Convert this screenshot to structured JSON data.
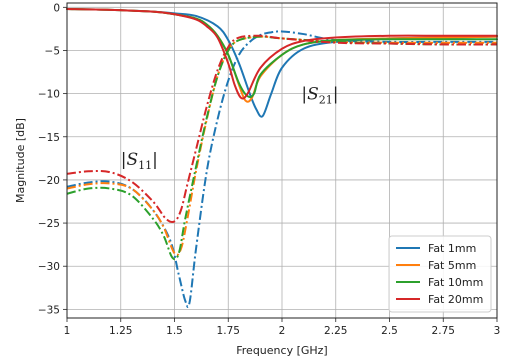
{
  "chart_data": {
    "type": "line",
    "title": "",
    "xlabel": "Frequency [GHz]",
    "ylabel": "Magnitude [dB]",
    "xlim": [
      1,
      3
    ],
    "ylim": [
      -36,
      0.5
    ],
    "xticks": [
      1,
      1.25,
      1.5,
      1.75,
      2,
      2.25,
      2.5,
      2.75,
      3
    ],
    "xtick_labels": [
      "1",
      "1.25",
      "1.5",
      "1.75",
      "2",
      "2.25",
      "2.5",
      "2.75",
      "3"
    ],
    "yticks": [
      0,
      -5,
      -10,
      -15,
      -20,
      -25,
      -30,
      -35
    ],
    "ytick_labels": [
      "0",
      "−5",
      "−10",
      "−15",
      "−20",
      "−25",
      "−30",
      "−35"
    ],
    "grid": true,
    "legend_position": "bottom-right",
    "annotations": [
      {
        "text": "|S21|",
        "x": 2.09,
        "y": -10
      },
      {
        "text": "|S11|",
        "x": 1.25,
        "y": -17.6
      }
    ],
    "series": [
      {
        "name": "Fat 1mm",
        "color": "#1f77b4",
        "s21": {
          "x": [
            1.0,
            1.2,
            1.4,
            1.5,
            1.6,
            1.7,
            1.75,
            1.8,
            1.85,
            1.88,
            1.91,
            1.95,
            2.0,
            2.1,
            2.25,
            2.5,
            2.75,
            3.0
          ],
          "y": [
            -0.2,
            -0.3,
            -0.5,
            -0.7,
            -1.0,
            -2.2,
            -3.8,
            -6.5,
            -10.0,
            -11.8,
            -12.6,
            -10.0,
            -7.0,
            -4.8,
            -4.0,
            -3.6,
            -3.5,
            -3.4
          ]
        },
        "s11": {
          "x": [
            1.0,
            1.1,
            1.2,
            1.3,
            1.4,
            1.48,
            1.52,
            1.55,
            1.57,
            1.6,
            1.65,
            1.7,
            1.75,
            1.8,
            1.85,
            1.9,
            1.95,
            2.0,
            2.1,
            2.25,
            2.5,
            2.75,
            3.0
          ],
          "y": [
            -20.8,
            -20.3,
            -20.2,
            -21.0,
            -23.5,
            -27.0,
            -31.0,
            -34.0,
            -34.2,
            -28.0,
            -19.0,
            -13.0,
            -8.5,
            -5.5,
            -4.0,
            -3.2,
            -2.9,
            -2.8,
            -3.1,
            -3.8,
            -4.0,
            -4.0,
            -4.0
          ]
        }
      },
      {
        "name": "Fat 5mm",
        "color": "#ff7f0e",
        "s21": {
          "x": [
            1.0,
            1.2,
            1.4,
            1.5,
            1.6,
            1.65,
            1.7,
            1.75,
            1.8,
            1.83,
            1.86,
            1.9,
            2.0,
            2.1,
            2.25,
            2.5,
            2.75,
            3.0
          ],
          "y": [
            -0.2,
            -0.3,
            -0.5,
            -0.8,
            -1.3,
            -2.0,
            -3.3,
            -5.5,
            -9.0,
            -10.8,
            -10.5,
            -8.0,
            -5.5,
            -4.3,
            -3.8,
            -3.6,
            -3.5,
            -3.4
          ]
        },
        "s11": {
          "x": [
            1.0,
            1.1,
            1.2,
            1.3,
            1.4,
            1.45,
            1.5,
            1.53,
            1.56,
            1.6,
            1.65,
            1.7,
            1.75,
            1.8,
            1.9,
            2.0,
            2.25,
            2.5,
            2.75,
            3.0
          ],
          "y": [
            -21.0,
            -20.5,
            -20.4,
            -21.0,
            -23.5,
            -25.5,
            -28.5,
            -28.0,
            -24.5,
            -19.0,
            -13.0,
            -8.0,
            -5.0,
            -3.8,
            -3.4,
            -3.6,
            -4.0,
            -4.1,
            -4.1,
            -4.1
          ]
        }
      },
      {
        "name": "Fat 10mm",
        "color": "#2ca02c",
        "s21": {
          "x": [
            1.0,
            1.2,
            1.4,
            1.5,
            1.6,
            1.65,
            1.7,
            1.75,
            1.8,
            1.84,
            1.87,
            1.9,
            2.0,
            2.1,
            2.25,
            2.5,
            2.75,
            3.0
          ],
          "y": [
            -0.2,
            -0.3,
            -0.5,
            -0.8,
            -1.3,
            -2.0,
            -3.3,
            -5.5,
            -8.8,
            -10.3,
            -10.0,
            -7.8,
            -5.5,
            -4.3,
            -3.8,
            -3.7,
            -3.7,
            -3.7
          ]
        },
        "s11": {
          "x": [
            1.0,
            1.1,
            1.2,
            1.3,
            1.4,
            1.45,
            1.49,
            1.52,
            1.55,
            1.6,
            1.65,
            1.7,
            1.75,
            1.8,
            1.9,
            2.0,
            2.25,
            2.5,
            2.75,
            3.0
          ],
          "y": [
            -21.6,
            -21.0,
            -21.0,
            -21.8,
            -24.5,
            -26.5,
            -29.0,
            -28.5,
            -24.5,
            -18.5,
            -12.8,
            -8.0,
            -5.0,
            -3.8,
            -3.4,
            -3.6,
            -4.0,
            -4.2,
            -4.3,
            -4.3
          ]
        }
      },
      {
        "name": "Fat 20mm",
        "color": "#d62728",
        "s21": {
          "x": [
            1.0,
            1.2,
            1.4,
            1.5,
            1.6,
            1.65,
            1.7,
            1.75,
            1.78,
            1.81,
            1.84,
            1.9,
            2.0,
            2.1,
            2.25,
            2.5,
            2.75,
            3.0
          ],
          "y": [
            -0.2,
            -0.3,
            -0.5,
            -0.8,
            -1.4,
            -2.2,
            -3.5,
            -6.5,
            -9.0,
            -10.5,
            -10.0,
            -7.0,
            -4.8,
            -3.9,
            -3.5,
            -3.3,
            -3.3,
            -3.3
          ]
        },
        "s11": {
          "x": [
            1.0,
            1.1,
            1.2,
            1.3,
            1.4,
            1.46,
            1.5,
            1.53,
            1.56,
            1.6,
            1.65,
            1.7,
            1.75,
            1.8,
            1.9,
            2.0,
            2.25,
            2.5,
            2.75,
            3.0
          ],
          "y": [
            -19.3,
            -19.0,
            -19.1,
            -20.2,
            -22.5,
            -24.5,
            -24.8,
            -23.5,
            -20.5,
            -16.5,
            -11.5,
            -7.3,
            -4.6,
            -3.5,
            -3.3,
            -3.6,
            -4.1,
            -4.2,
            -4.3,
            -4.3
          ]
        }
      }
    ]
  }
}
